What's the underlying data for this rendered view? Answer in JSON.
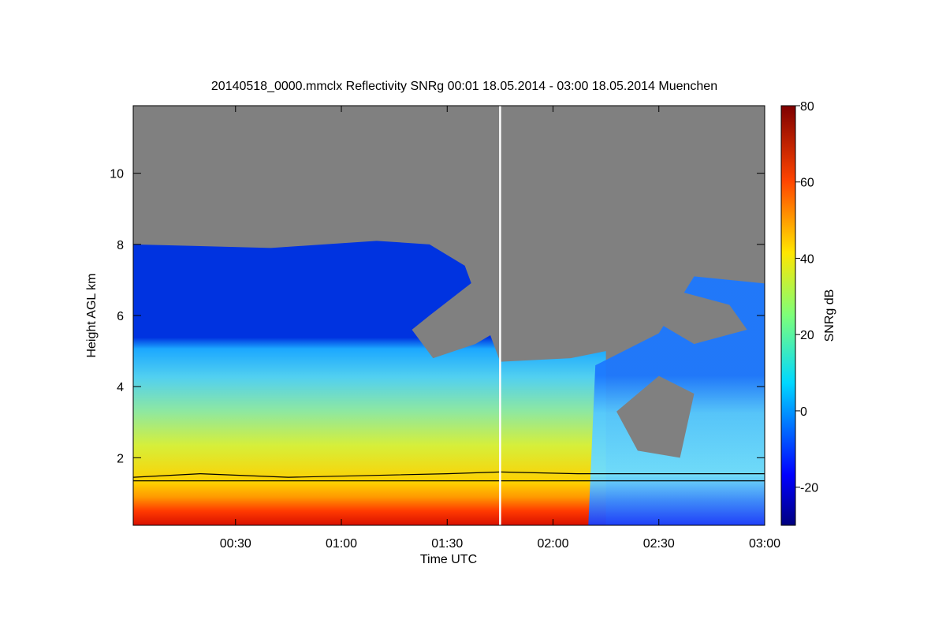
{
  "chart_data": {
    "type": "heatmap",
    "title": "20140518_0000.mmclx Reflectivity SNRg   00:01 18.05.2014 - 03:00 18.05.2014 Muenchen",
    "xlabel": "Time UTC",
    "ylabel": "Height AGL km",
    "colorbar_label": "SNRg dB",
    "xlim": [
      "00:01",
      "03:00"
    ],
    "ylim": [
      0.1,
      11.9
    ],
    "x_ticks": [
      "00:30",
      "01:00",
      "01:30",
      "02:00",
      "02:30",
      "03:00"
    ],
    "y_ticks": [
      2,
      4,
      6,
      8,
      10
    ],
    "colorbar_range": [
      -30,
      80
    ],
    "colorbar_ticks": [
      -20,
      0,
      20,
      40,
      60,
      80
    ],
    "colorscale": "jet",
    "nodata_color": "#808080",
    "data_gap_time": "01:45",
    "cloud_top_km": [
      {
        "time": "00:01",
        "height": 8.0
      },
      {
        "time": "00:40",
        "height": 7.9
      },
      {
        "time": "01:10",
        "height": 8.1
      },
      {
        "time": "01:25",
        "height": 8.0
      },
      {
        "time": "01:35",
        "height": 7.4
      },
      {
        "time": "01:45",
        "height": 4.7
      },
      {
        "time": "02:05",
        "height": 4.8
      },
      {
        "time": "02:15",
        "height": 5.0
      },
      {
        "time": "02:35",
        "height": 7.0
      },
      {
        "time": "03:00",
        "height": 6.8
      }
    ],
    "overlay_lines_km": [
      {
        "name": "",
        "values": [
          {
            "time": "00:01",
            "height": 1.45
          },
          {
            "time": "00:20",
            "height": 1.55
          },
          {
            "time": "00:45",
            "height": 1.45
          },
          {
            "time": "01:30",
            "height": 1.55
          },
          {
            "time": "01:45",
            "height": 1.6
          },
          {
            "time": "02:07",
            "height": 1.55
          },
          {
            "time": "03:00",
            "height": 1.55
          }
        ]
      },
      {
        "name": "",
        "values": [
          {
            "time": "00:01",
            "height": 1.35
          },
          {
            "time": "03:00",
            "height": 1.35
          }
        ]
      }
    ]
  }
}
